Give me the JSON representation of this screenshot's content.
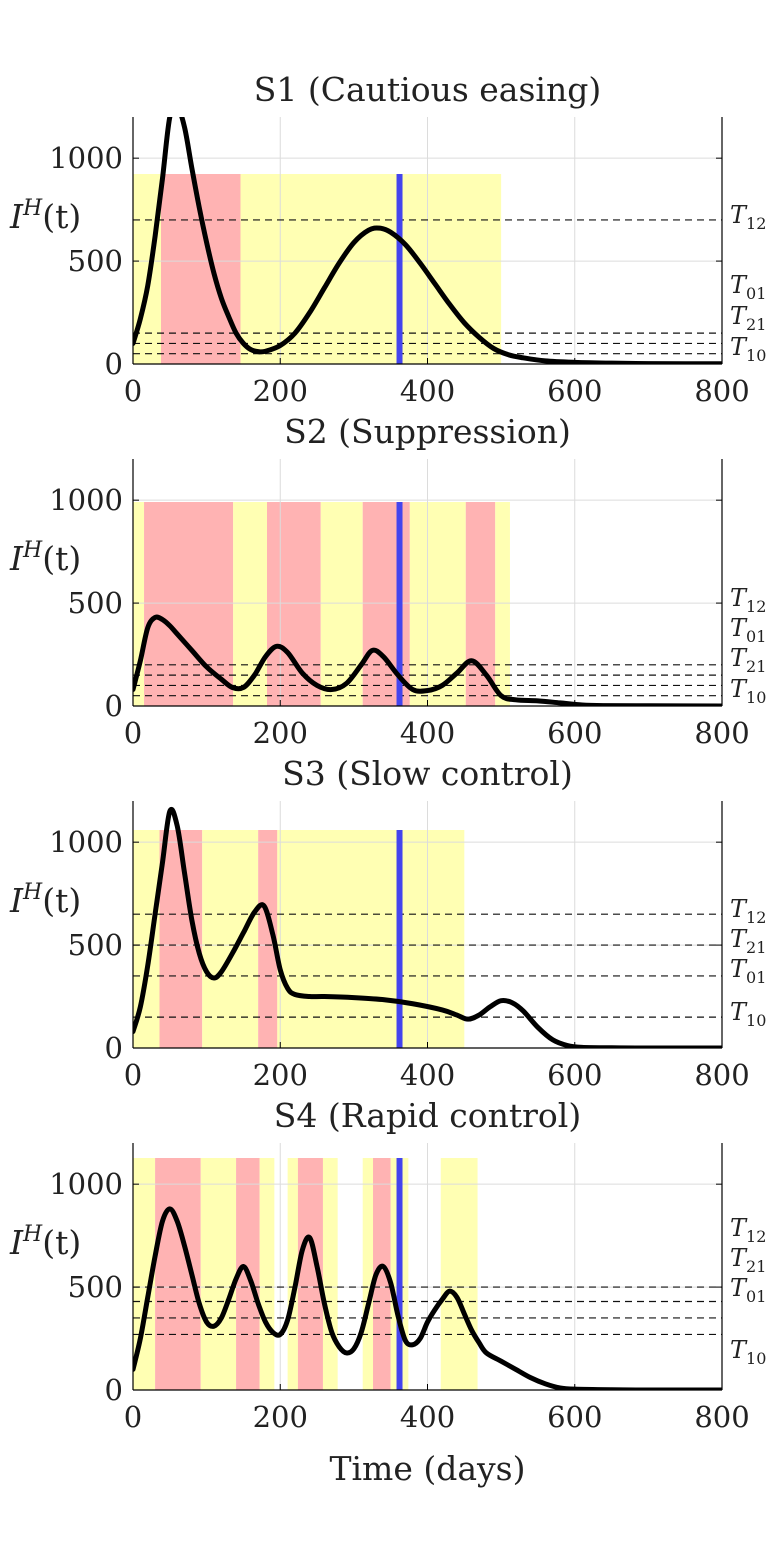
{
  "chart_data": [
    {
      "type": "line",
      "title": "S1 (Cautious easing)",
      "ylabel": "I",
      "ylabel_sup": "H",
      "ylabel_arg": "(t)",
      "xlabel": "",
      "xlim": [
        0,
        800
      ],
      "ylim": [
        0,
        1200
      ],
      "xticks": [
        0,
        200,
        400,
        600,
        800
      ],
      "yticks": [
        0,
        500,
        1000
      ],
      "grid": true,
      "marker_x": 362,
      "regions": [
        {
          "level": 1,
          "from": 0,
          "to": 38
        },
        {
          "level": 2,
          "from": 38,
          "to": 146
        },
        {
          "level": 1,
          "from": 146,
          "to": 500
        }
      ],
      "thresholds": [
        {
          "name": "T",
          "sub": "12",
          "value": 700
        },
        {
          "name": "T",
          "sub": "01",
          "value": 150
        },
        {
          "name": "T",
          "sub": "21",
          "value": 100
        },
        {
          "name": "T",
          "sub": "10",
          "value": 50
        }
      ],
      "series": [
        {
          "x": [
            0,
            10,
            20,
            30,
            40,
            50,
            60,
            70,
            80,
            90,
            100,
            110,
            120,
            130,
            140,
            150,
            160,
            170,
            180,
            200,
            220,
            240,
            260,
            280,
            300,
            320,
            335,
            350,
            370,
            390,
            410,
            430,
            450,
            470,
            490,
            510,
            530,
            560,
            600,
            650,
            700,
            750,
            800
          ],
          "y": [
            100,
            220,
            380,
            620,
            900,
            1200,
            1250,
            1150,
            950,
            760,
            590,
            440,
            320,
            230,
            150,
            100,
            70,
            60,
            62,
            90,
            150,
            250,
            370,
            490,
            590,
            650,
            660,
            640,
            580,
            490,
            390,
            290,
            200,
            130,
            75,
            45,
            30,
            15,
            8,
            4,
            2,
            1,
            1
          ]
        }
      ]
    },
    {
      "type": "line",
      "title": "S2 (Suppression)",
      "ylabel": "I",
      "ylabel_sup": "H",
      "ylabel_arg": "(t)",
      "xlabel": "",
      "xlim": [
        0,
        800
      ],
      "ylim": [
        0,
        1200
      ],
      "xticks": [
        0,
        200,
        400,
        600,
        800
      ],
      "yticks": [
        0,
        500,
        1000
      ],
      "grid": true,
      "marker_x": 362,
      "regions": [
        {
          "level": 1,
          "from": 0,
          "to": 15
        },
        {
          "level": 2,
          "from": 15,
          "to": 136
        },
        {
          "level": 1,
          "from": 136,
          "to": 182
        },
        {
          "level": 2,
          "from": 182,
          "to": 255
        },
        {
          "level": 1,
          "from": 255,
          "to": 312
        },
        {
          "level": 2,
          "from": 312,
          "to": 376
        },
        {
          "level": 1,
          "from": 376,
          "to": 452
        },
        {
          "level": 2,
          "from": 452,
          "to": 492
        },
        {
          "level": 1,
          "from": 492,
          "to": 512
        }
      ],
      "thresholds": [
        {
          "name": "T",
          "sub": "12",
          "value": 200
        },
        {
          "name": "T",
          "sub": "01",
          "value": 150
        },
        {
          "name": "T",
          "sub": "21",
          "value": 100
        },
        {
          "name": "T",
          "sub": "10",
          "value": 50
        }
      ],
      "series": [
        {
          "x": [
            0,
            10,
            20,
            30,
            40,
            50,
            60,
            80,
            100,
            120,
            135,
            150,
            165,
            180,
            195,
            210,
            230,
            250,
            270,
            290,
            310,
            325,
            340,
            360,
            380,
            400,
            420,
            440,
            460,
            480,
            500,
            520,
            550,
            580,
            610,
            640,
            700,
            800
          ],
          "y": [
            80,
            220,
            380,
            430,
            420,
            390,
            350,
            270,
            190,
            130,
            90,
            90,
            150,
            240,
            290,
            260,
            160,
            100,
            80,
            110,
            200,
            270,
            240,
            150,
            80,
            75,
            100,
            160,
            220,
            150,
            50,
            30,
            25,
            15,
            5,
            2,
            1,
            0
          ]
        }
      ]
    },
    {
      "type": "line",
      "title": "S3 (Slow control)",
      "ylabel": "I",
      "ylabel_sup": "H",
      "ylabel_arg": "(t)",
      "xlabel": "",
      "xlim": [
        0,
        800
      ],
      "ylim": [
        0,
        1200
      ],
      "xticks": [
        0,
        200,
        400,
        600,
        800
      ],
      "yticks": [
        0,
        500,
        1000
      ],
      "grid": true,
      "marker_x": 362,
      "regions": [
        {
          "level": 1,
          "from": 0,
          "to": 36
        },
        {
          "level": 2,
          "from": 36,
          "to": 94
        },
        {
          "level": 1,
          "from": 94,
          "to": 170
        },
        {
          "level": 2,
          "from": 170,
          "to": 196
        },
        {
          "level": 1,
          "from": 196,
          "to": 450
        }
      ],
      "thresholds": [
        {
          "name": "T",
          "sub": "12",
          "value": 650
        },
        {
          "name": "T",
          "sub": "21",
          "value": 500
        },
        {
          "name": "T",
          "sub": "01",
          "value": 350
        },
        {
          "name": "T",
          "sub": "10",
          "value": 150
        }
      ],
      "series": [
        {
          "x": [
            0,
            10,
            20,
            30,
            40,
            50,
            60,
            70,
            80,
            90,
            100,
            110,
            120,
            135,
            150,
            165,
            178,
            190,
            200,
            210,
            220,
            240,
            260,
            300,
            340,
            380,
            420,
            440,
            455,
            470,
            485,
            500,
            515,
            530,
            550,
            570,
            590,
            610,
            650,
            700,
            800
          ],
          "y": [
            80,
            200,
            400,
            650,
            900,
            1150,
            1080,
            850,
            620,
            460,
            370,
            340,
            370,
            460,
            560,
            660,
            690,
            550,
            380,
            290,
            260,
            250,
            250,
            245,
            235,
            215,
            185,
            160,
            140,
            160,
            200,
            230,
            220,
            180,
            100,
            40,
            12,
            3,
            1,
            0,
            0
          ]
        }
      ]
    },
    {
      "type": "line",
      "title": "S4 (Rapid control)",
      "ylabel": "I",
      "ylabel_sup": "H",
      "ylabel_arg": "(t)",
      "xlabel": "Time (days)",
      "xlim": [
        0,
        800
      ],
      "ylim": [
        0,
        1200
      ],
      "xticks": [
        0,
        200,
        400,
        600,
        800
      ],
      "yticks": [
        0,
        500,
        1000
      ],
      "grid": true,
      "marker_x": 362,
      "regions": [
        {
          "level": 1,
          "from": 0,
          "to": 30
        },
        {
          "level": 2,
          "from": 30,
          "to": 92
        },
        {
          "level": 1,
          "from": 92,
          "to": 140
        },
        {
          "level": 2,
          "from": 140,
          "to": 172
        },
        {
          "level": 1,
          "from": 172,
          "to": 192
        },
        {
          "level": 1,
          "from": 210,
          "to": 224
        },
        {
          "level": 2,
          "from": 224,
          "to": 258
        },
        {
          "level": 1,
          "from": 258,
          "to": 278
        },
        {
          "level": 1,
          "from": 312,
          "to": 326
        },
        {
          "level": 2,
          "from": 326,
          "to": 350
        },
        {
          "level": 1,
          "from": 350,
          "to": 374
        },
        {
          "level": 1,
          "from": 418,
          "to": 468
        }
      ],
      "thresholds": [
        {
          "name": "T",
          "sub": "12",
          "value": 500
        },
        {
          "name": "T",
          "sub": "21",
          "value": 430
        },
        {
          "name": "T",
          "sub": "01",
          "value": 350
        },
        {
          "name": "T",
          "sub": "10",
          "value": 270
        }
      ],
      "series": [
        {
          "x": [
            0,
            10,
            20,
            30,
            40,
            50,
            60,
            70,
            80,
            90,
            100,
            110,
            120,
            130,
            140,
            150,
            160,
            170,
            180,
            190,
            200,
            210,
            220,
            230,
            240,
            250,
            260,
            270,
            280,
            290,
            300,
            310,
            320,
            330,
            340,
            350,
            360,
            370,
            380,
            390,
            400,
            410,
            420,
            430,
            440,
            450,
            460,
            470,
            480,
            500,
            520,
            540,
            560,
            580,
            600,
            650,
            700,
            800
          ],
          "y": [
            100,
            250,
            450,
            650,
            820,
            880,
            820,
            700,
            560,
            420,
            330,
            310,
            350,
            440,
            540,
            600,
            530,
            420,
            330,
            280,
            270,
            340,
            500,
            680,
            740,
            600,
            420,
            280,
            210,
            180,
            200,
            280,
            420,
            560,
            600,
            520,
            360,
            240,
            220,
            250,
            330,
            390,
            440,
            480,
            450,
            370,
            290,
            230,
            180,
            140,
            100,
            60,
            30,
            10,
            4,
            1,
            0,
            0
          ]
        }
      ]
    }
  ]
}
